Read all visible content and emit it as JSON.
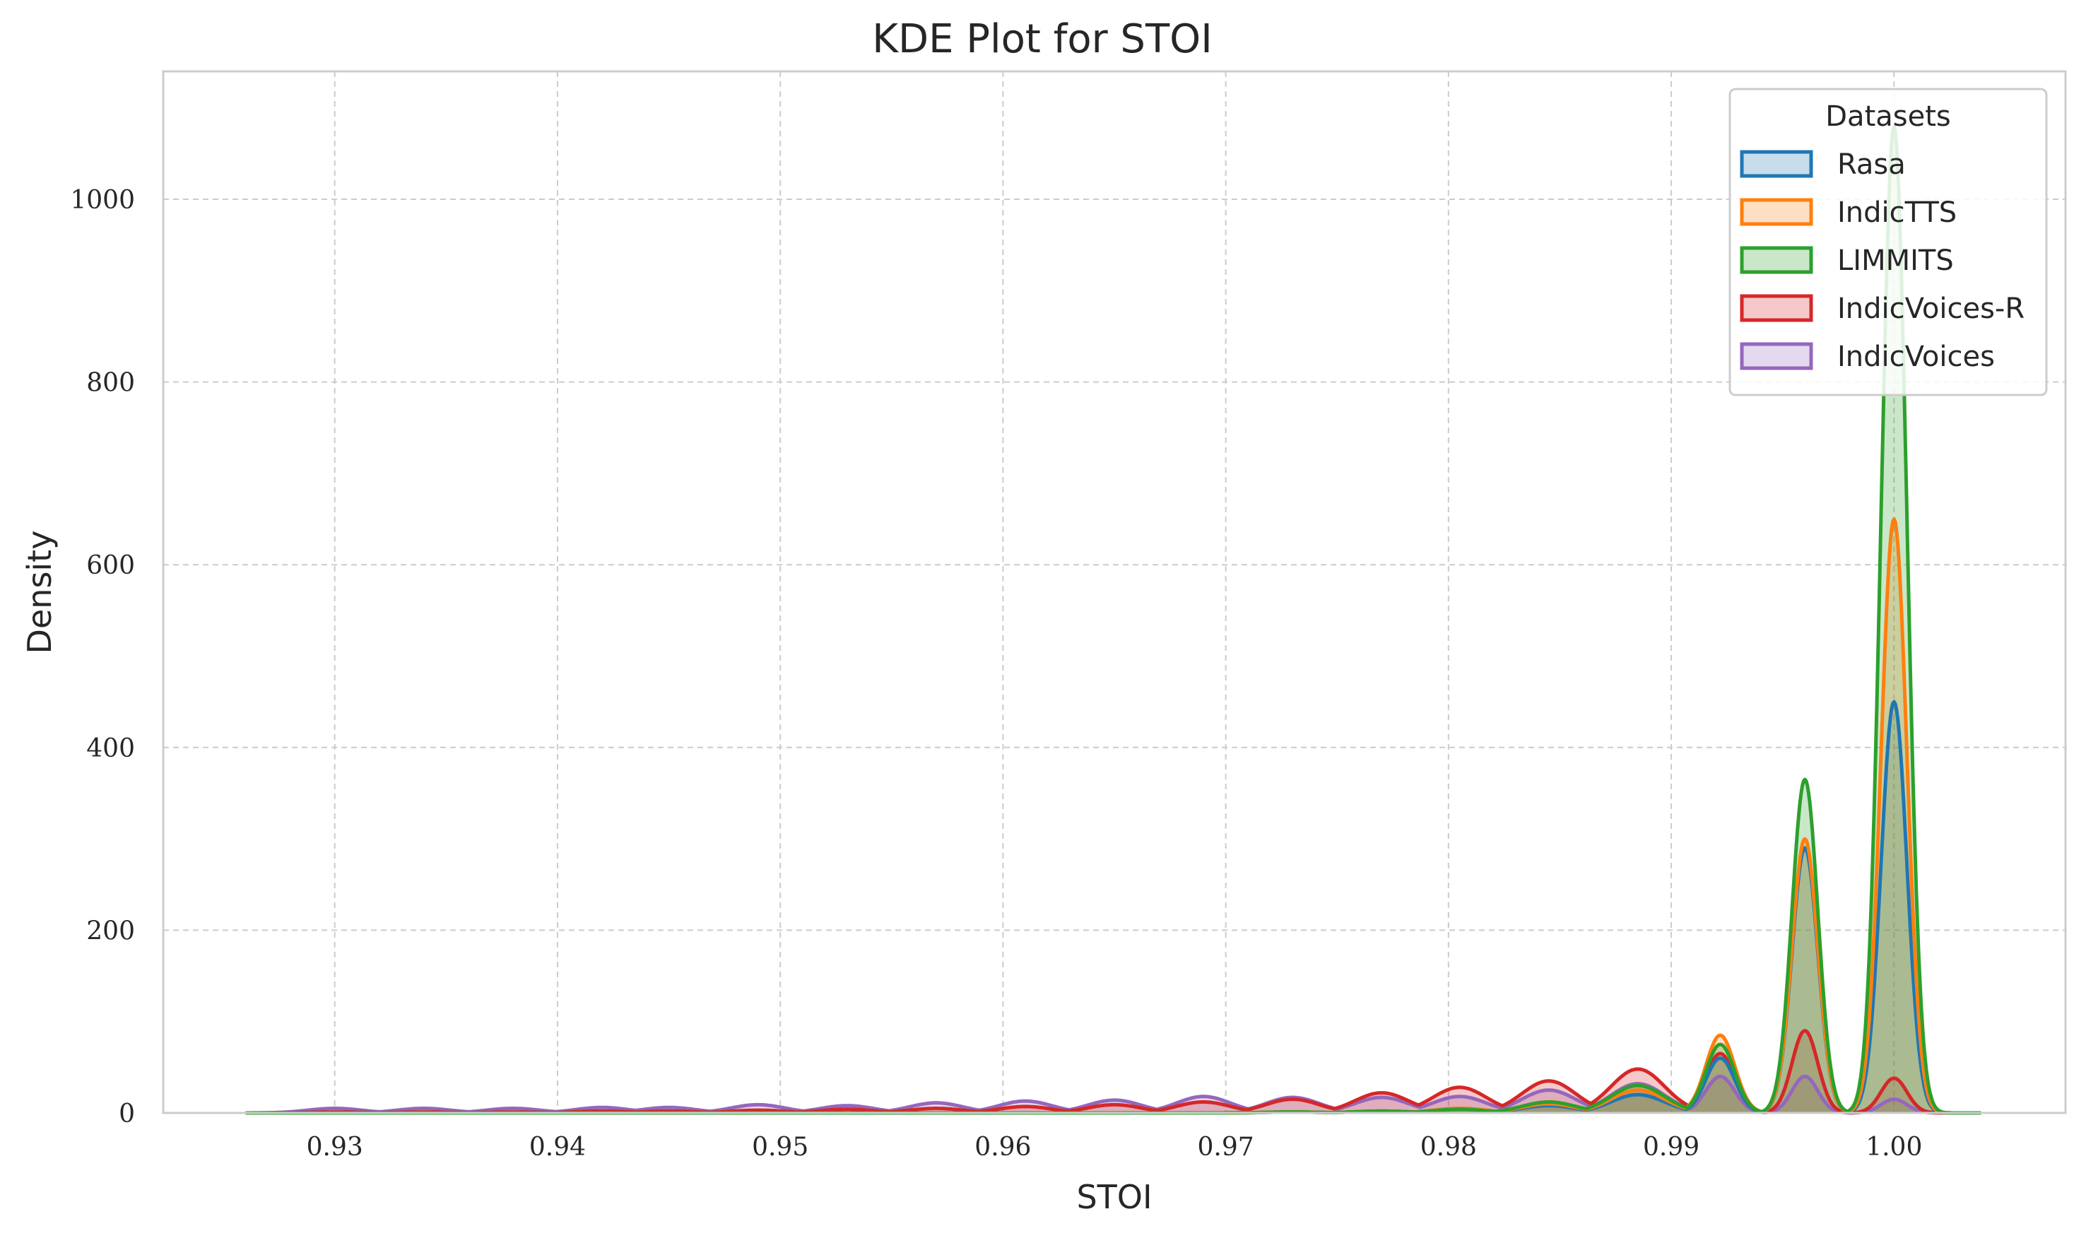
{
  "chart_data": {
    "type": "area",
    "title": "KDE Plot for STOI",
    "xlabel": "STOI",
    "ylabel": "Density",
    "xlim": [
      0.9223,
      1.0077
    ],
    "ylim": [
      0,
      1140
    ],
    "xticks": [
      0.93,
      0.94,
      0.95,
      0.96,
      0.97,
      0.98,
      0.99,
      1.0
    ],
    "xtick_labels": [
      "0.93",
      "0.94",
      "0.95",
      "0.96",
      "0.97",
      "0.98",
      "0.99",
      "1.00"
    ],
    "yticks": [
      0,
      200,
      400,
      600,
      800,
      1000
    ],
    "ytick_labels": [
      "0",
      "200",
      "400",
      "600",
      "800",
      "1000"
    ],
    "grid": true,
    "legend": {
      "title": "Datasets",
      "position": "top-right"
    },
    "x": [
      0.926,
      0.93,
      0.934,
      0.938,
      0.942,
      0.945,
      0.949,
      0.953,
      0.957,
      0.961,
      0.965,
      0.969,
      0.973,
      0.977,
      0.9805,
      0.9845,
      0.9885,
      0.9922,
      0.996,
      1.0,
      1.0039
    ],
    "series": [
      {
        "name": "Rasa",
        "color": "#1f77b4",
        "values": [
          0,
          0,
          0,
          0,
          0,
          0,
          0,
          0,
          0,
          0,
          0,
          0,
          1,
          2,
          4,
          8,
          20,
          60,
          290,
          450,
          0
        ]
      },
      {
        "name": "IndicTTS",
        "color": "#ff7f0e",
        "values": [
          0,
          0,
          0,
          0,
          0,
          0,
          0,
          0,
          0,
          0,
          0,
          0,
          1,
          2,
          5,
          10,
          25,
          85,
          300,
          650,
          0
        ]
      },
      {
        "name": "LIMMITS",
        "color": "#2ca02c",
        "values": [
          0,
          0,
          0,
          0,
          0,
          0,
          0,
          0,
          0,
          0,
          0,
          0,
          1,
          2,
          4,
          12,
          30,
          75,
          365,
          1080,
          0
        ]
      },
      {
        "name": "IndicVoices-R",
        "color": "#d62728",
        "values": [
          0,
          1,
          1,
          1,
          2,
          2,
          3,
          4,
          5,
          7,
          9,
          12,
          15,
          22,
          28,
          35,
          48,
          65,
          90,
          38,
          0
        ]
      },
      {
        "name": "IndicVoices",
        "color": "#9467bd",
        "values": [
          0,
          5,
          5,
          5,
          6,
          6,
          9,
          8,
          11,
          13,
          14,
          18,
          17,
          17,
          18,
          25,
          32,
          40,
          40,
          15,
          0
        ]
      }
    ]
  }
}
